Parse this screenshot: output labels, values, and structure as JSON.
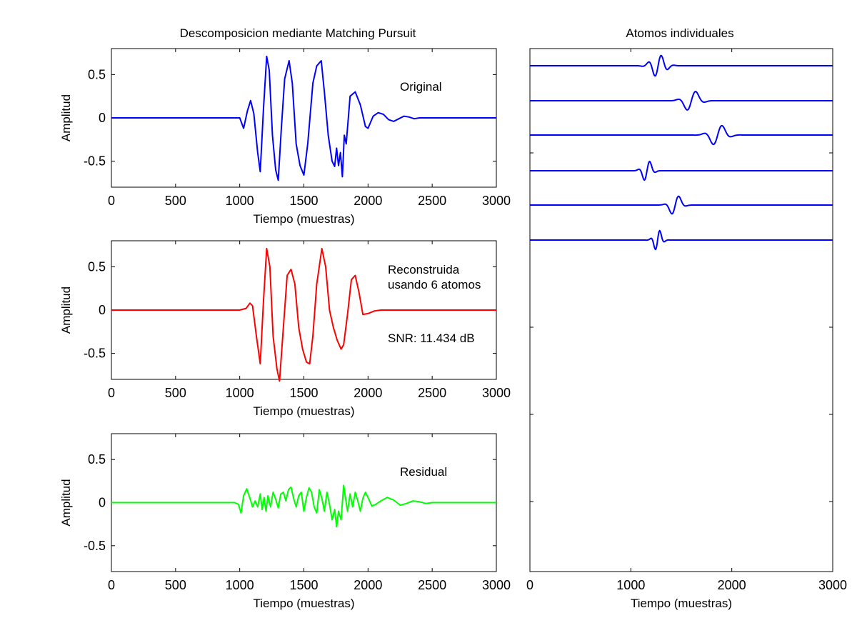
{
  "figure": {
    "left_title": "Descomposicion mediante Matching Pursuit",
    "right_title": "Atomos individuales"
  },
  "chart_data": [
    {
      "type": "line",
      "panel": "original",
      "title": "",
      "xlabel": "Tiempo (muestras)",
      "ylabel": "Amplitud",
      "xlim": [
        0,
        3000
      ],
      "ylim": [
        -0.8,
        0.8
      ],
      "xticks": [
        0,
        500,
        1000,
        1500,
        2000,
        2500,
        3000
      ],
      "xtick_labels": [
        "0",
        "500",
        "1000",
        "1500",
        "2000",
        "2500",
        "3000"
      ],
      "yticks": [
        0.5,
        0,
        -0.5
      ],
      "ytick_labels": [
        "0.5",
        "0",
        "-0.5"
      ],
      "annotations": [
        "Original"
      ],
      "color": "#0000ff",
      "series": [
        {
          "x": [
            0,
            950,
            980,
            1000,
            1030,
            1060,
            1085,
            1110,
            1140,
            1160,
            1185,
            1210,
            1230,
            1255,
            1280,
            1300,
            1325,
            1350,
            1385,
            1410,
            1440,
            1470,
            1500,
            1530,
            1570,
            1600,
            1635,
            1660,
            1690,
            1720,
            1740,
            1755,
            1770,
            1785,
            1800,
            1815,
            1830,
            1860,
            1900,
            1940,
            1980,
            2000,
            2040,
            2080,
            2120,
            2160,
            2200,
            2240,
            2280,
            2320,
            2360,
            2400,
            2500,
            3000
          ],
          "y": [
            0,
            0,
            0,
            0,
            -0.12,
            0.08,
            0.2,
            0.05,
            -0.4,
            -0.62,
            0.1,
            0.71,
            0.55,
            -0.2,
            -0.6,
            -0.72,
            -0.1,
            0.45,
            0.66,
            0.4,
            -0.3,
            -0.55,
            -0.66,
            -0.3,
            0.4,
            0.6,
            0.66,
            0.3,
            -0.2,
            -0.5,
            -0.56,
            -0.35,
            -0.55,
            -0.4,
            -0.68,
            -0.2,
            -0.3,
            0.25,
            0.3,
            0.15,
            -0.1,
            -0.12,
            0.02,
            0.06,
            0.04,
            -0.02,
            -0.04,
            -0.01,
            0.02,
            0.01,
            -0.01,
            0,
            0,
            0
          ]
        }
      ]
    },
    {
      "type": "line",
      "panel": "reconstruida",
      "title": "",
      "xlabel": "Tiempo (muestras)",
      "ylabel": "Amplitud",
      "xlim": [
        0,
        3000
      ],
      "ylim": [
        -0.8,
        0.8
      ],
      "xticks": [
        0,
        500,
        1000,
        1500,
        2000,
        2500,
        3000
      ],
      "xtick_labels": [
        "0",
        "500",
        "1000",
        "1500",
        "2000",
        "2500",
        "3000"
      ],
      "yticks": [
        0.5,
        0,
        -0.5
      ],
      "ytick_labels": [
        "0.5",
        "0",
        "-0.5"
      ],
      "annotations": [
        "Reconstruida",
        "usando 6 atomos",
        "SNR: 11.434 dB"
      ],
      "color": "#ff0000",
      "series": [
        {
          "x": [
            0,
            1000,
            1050,
            1080,
            1100,
            1130,
            1160,
            1185,
            1210,
            1235,
            1260,
            1290,
            1310,
            1340,
            1370,
            1400,
            1430,
            1460,
            1490,
            1520,
            1545,
            1570,
            1600,
            1640,
            1670,
            1700,
            1730,
            1760,
            1790,
            1810,
            1840,
            1870,
            1900,
            1930,
            1960,
            2000,
            2050,
            2100,
            3000
          ],
          "y": [
            0,
            0,
            0.02,
            0.08,
            0.05,
            -0.3,
            -0.62,
            0.1,
            0.71,
            0.5,
            -0.3,
            -0.68,
            -0.82,
            -0.2,
            0.4,
            0.47,
            0.3,
            -0.2,
            -0.45,
            -0.6,
            -0.62,
            -0.3,
            0.3,
            0.71,
            0.5,
            0,
            -0.2,
            -0.35,
            -0.45,
            -0.4,
            -0.05,
            0.35,
            0.4,
            0.2,
            -0.05,
            -0.04,
            -0.01,
            0,
            0
          ]
        }
      ]
    },
    {
      "type": "line",
      "panel": "residual",
      "title": "",
      "xlabel": "Tiempo (muestras)",
      "ylabel": "Amplitud",
      "xlim": [
        0,
        3000
      ],
      "ylim": [
        -0.8,
        0.8
      ],
      "xticks": [
        0,
        500,
        1000,
        1500,
        2000,
        2500,
        3000
      ],
      "xtick_labels": [
        "0",
        "500",
        "1000",
        "1500",
        "2000",
        "2500",
        "3000"
      ],
      "yticks": [
        0.5,
        0,
        -0.5
      ],
      "ytick_labels": [
        "0.5",
        "0",
        "-0.5"
      ],
      "annotations": [
        "Residual"
      ],
      "color": "#00ff00",
      "series": [
        {
          "x": [
            0,
            960,
            990,
            1010,
            1030,
            1055,
            1080,
            1100,
            1120,
            1140,
            1160,
            1175,
            1190,
            1205,
            1220,
            1240,
            1260,
            1280,
            1300,
            1320,
            1340,
            1360,
            1380,
            1400,
            1420,
            1440,
            1460,
            1480,
            1500,
            1520,
            1540,
            1560,
            1580,
            1600,
            1620,
            1640,
            1660,
            1680,
            1700,
            1720,
            1740,
            1755,
            1770,
            1790,
            1810,
            1825,
            1840,
            1860,
            1880,
            1900,
            1920,
            1940,
            1960,
            1980,
            2000,
            2030,
            2060,
            2100,
            2150,
            2200,
            2250,
            2300,
            2350,
            2400,
            2450,
            2500,
            3000
          ],
          "y": [
            0,
            0,
            -0.02,
            -0.12,
            0.08,
            0.16,
            0.05,
            -0.05,
            0.02,
            -0.05,
            0.1,
            -0.08,
            0.06,
            -0.1,
            0.08,
            -0.05,
            0.12,
            0.04,
            -0.06,
            0.1,
            0.12,
            0.02,
            0.15,
            0.18,
            0.05,
            -0.05,
            0.08,
            0.12,
            -0.1,
            0.06,
            0.17,
            0.12,
            -0.05,
            -0.12,
            0.15,
            0.05,
            -0.1,
            0.12,
            -0.02,
            -0.2,
            -0.08,
            -0.28,
            -0.1,
            -0.2,
            0.2,
            0.05,
            -0.1,
            0.1,
            -0.05,
            0.12,
            0.02,
            -0.1,
            0.05,
            0.12,
            0.06,
            -0.04,
            -0.02,
            0.02,
            0.06,
            0.03,
            -0.03,
            -0.01,
            0.02,
            0.01,
            -0.01,
            0,
            0
          ]
        }
      ]
    },
    {
      "type": "line",
      "panel": "atomos",
      "title": "Atomos individuales",
      "xlabel": "Tiempo (muestras)",
      "ylabel": "",
      "xlim": [
        0,
        3000
      ],
      "xticks": [
        0,
        1000,
        2000,
        3000
      ],
      "xtick_labels": [
        "0",
        "1000",
        "2000",
        "3000"
      ],
      "color": "#0000ff",
      "series": [
        {
          "center": 1270,
          "width": 90,
          "freq": 0.0075,
          "amp": 0.18
        },
        {
          "center": 1600,
          "width": 95,
          "freq": 0.005,
          "amp": 0.18
        },
        {
          "center": 1860,
          "width": 100,
          "freq": 0.005,
          "amp": 0.18
        },
        {
          "center": 1160,
          "width": 60,
          "freq": 0.008,
          "amp": 0.18
        },
        {
          "center": 1440,
          "width": 70,
          "freq": 0.006,
          "amp": 0.18
        },
        {
          "center": 1265,
          "width": 50,
          "freq": 0.01,
          "amp": 0.18
        }
      ]
    }
  ]
}
